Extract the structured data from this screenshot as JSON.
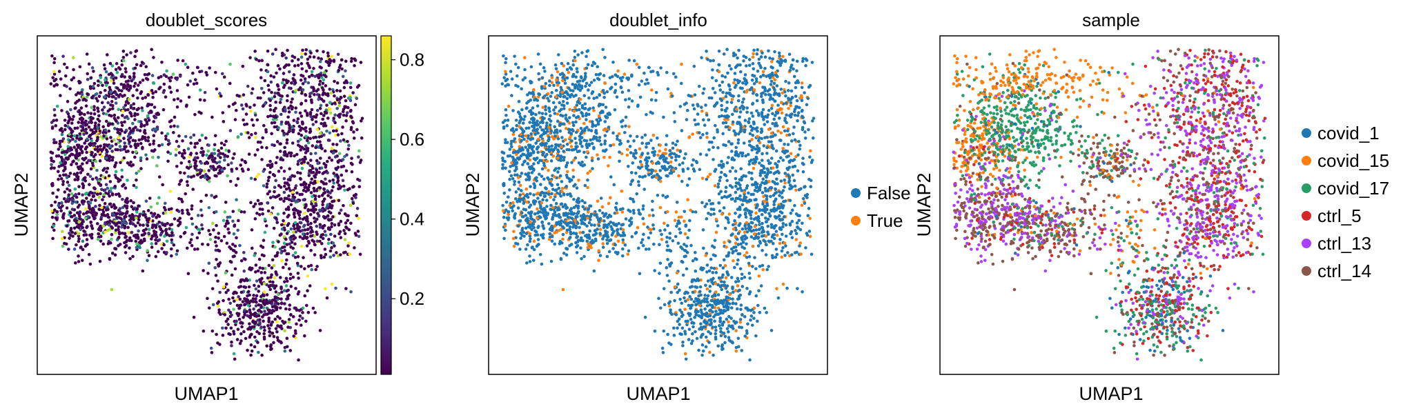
{
  "chart_data": [
    {
      "type": "scatter",
      "title": "doublet_scores",
      "xlabel": "UMAP1",
      "ylabel": "UMAP2",
      "color_by": "continuous",
      "colormap": "viridis",
      "colorbar": {
        "range": [
          0.01,
          0.86
        ],
        "ticks": [
          0.2,
          0.4,
          0.6,
          0.8
        ],
        "tick_labels": [
          "0.2",
          "0.4",
          "0.6",
          "0.8"
        ]
      },
      "axis_ticks": false,
      "grid": false
    },
    {
      "type": "scatter",
      "title": "doublet_info",
      "xlabel": "UMAP1",
      "ylabel": "UMAP2",
      "color_by": "categorical",
      "legend": {
        "placement": "right",
        "entries": [
          {
            "label": "False",
            "color": "#1f77b4"
          },
          {
            "label": "True",
            "color": "#ff7f0e"
          }
        ]
      },
      "axis_ticks": false,
      "grid": false
    },
    {
      "type": "scatter",
      "title": "sample",
      "xlabel": "UMAP1",
      "ylabel": "UMAP2",
      "color_by": "categorical",
      "legend": {
        "placement": "right",
        "entries": [
          {
            "label": "covid_1",
            "color": "#1f77b4"
          },
          {
            "label": "covid_15",
            "color": "#ff7f0e"
          },
          {
            "label": "covid_17",
            "color": "#279e68"
          },
          {
            "label": "ctrl_5",
            "color": "#d62728"
          },
          {
            "label": "ctrl_13",
            "color": "#aa40fc"
          },
          {
            "label": "ctrl_14",
            "color": "#8c564b"
          }
        ]
      },
      "axis_ticks": false,
      "grid": false
    }
  ]
}
